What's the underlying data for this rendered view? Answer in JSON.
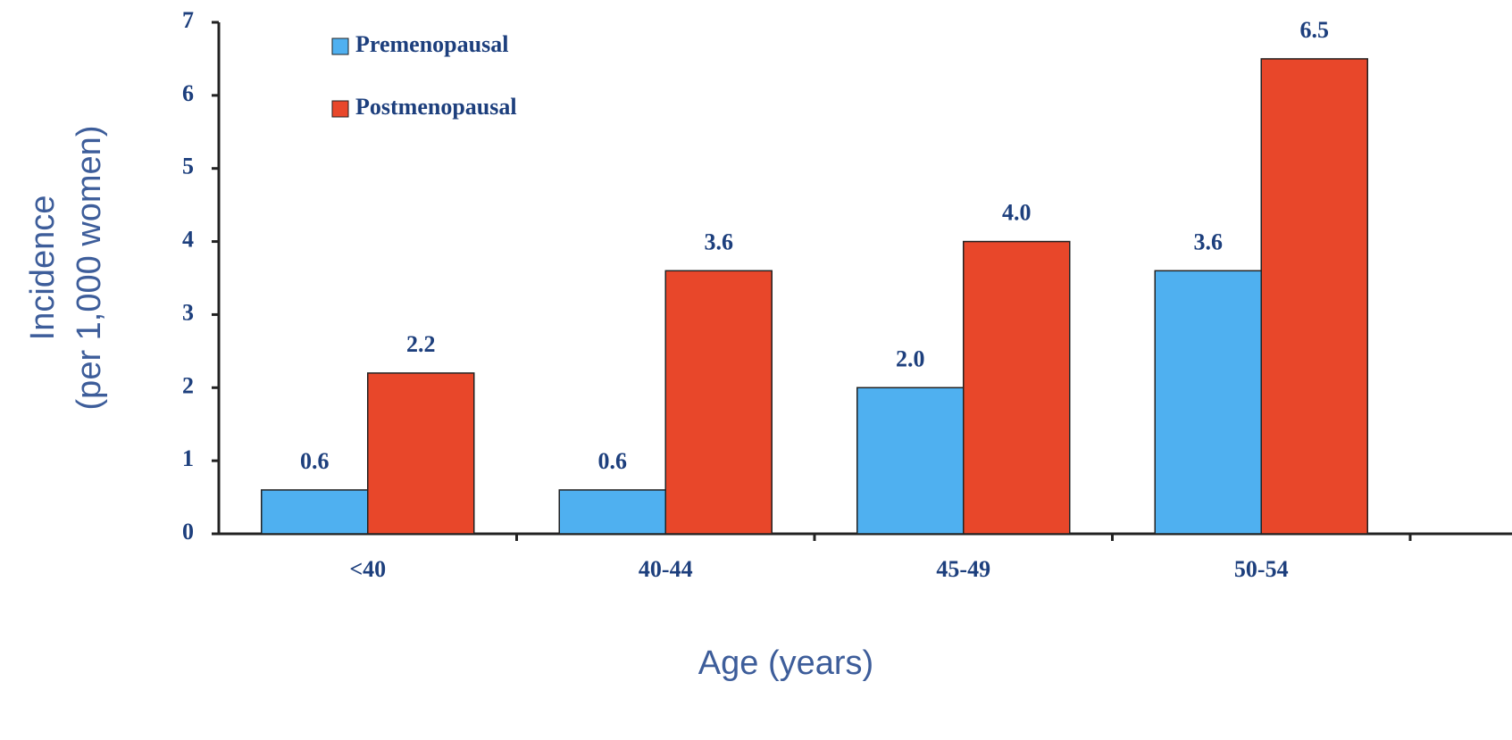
{
  "chart_data": {
    "type": "bar",
    "x_label": "Age (years)",
    "y_label": [
      "Incidence",
      "(per 1,000 women)"
    ],
    "categories": [
      "<40",
      "40-44",
      "45-49",
      "50-54"
    ],
    "series": [
      {
        "name": "Premenopausal",
        "color": "#4fb0f0",
        "values": [
          0.6,
          0.6,
          2.0,
          3.6
        ],
        "value_labels": [
          "0.6",
          "0.6",
          "2.0",
          "3.6"
        ]
      },
      {
        "name": "Postmenopausal",
        "color": "#e8472a",
        "values": [
          2.2,
          3.6,
          4.0,
          6.5
        ],
        "value_labels": [
          "2.2",
          "3.6",
          "4.0",
          "6.5"
        ]
      }
    ],
    "ylim": [
      0,
      7
    ],
    "yticks": [
      0,
      1,
      2,
      3,
      4,
      5,
      6,
      7
    ],
    "grid": false,
    "legend": "top-left"
  }
}
